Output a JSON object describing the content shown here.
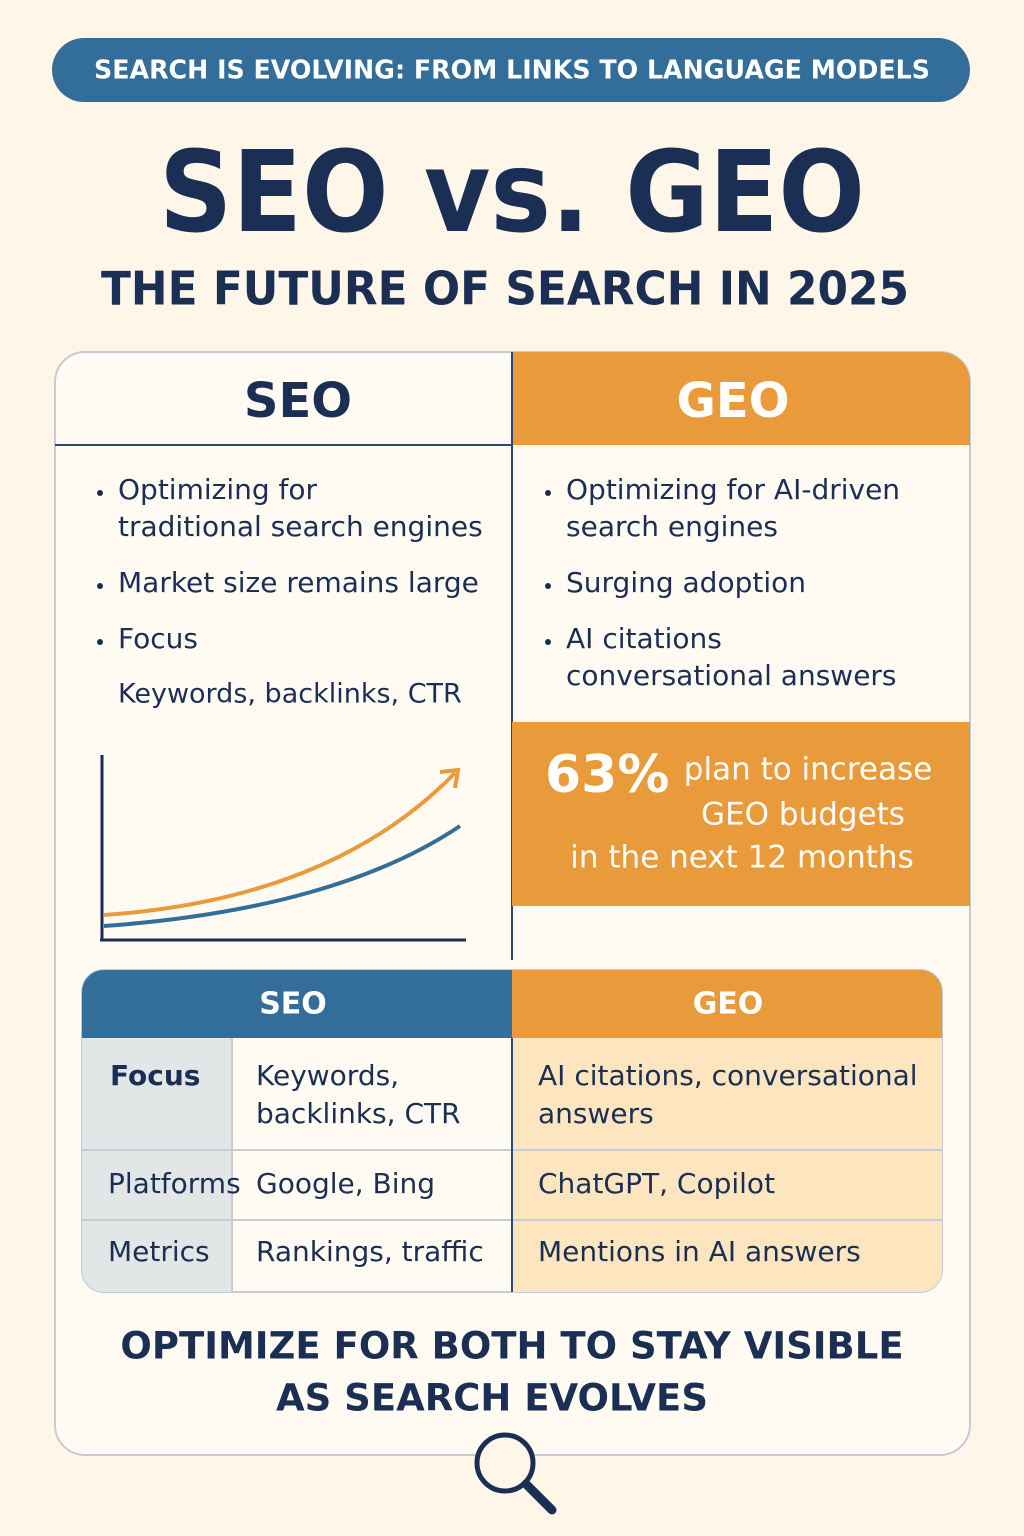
{
  "banner": "SEARCH IS EVOLVING: FROM LINKS TO LANGUAGE MODELS",
  "title": "SEO vs. GEO",
  "subtitle": "THE FUTURE OF SEARCH IN 2025",
  "seo": {
    "heading": "SEO",
    "bullets": [
      [
        "Optimizing for",
        "traditional search engines"
      ],
      [
        "Market size remains large"
      ],
      [
        "Focus"
      ]
    ],
    "detail": "Keywords, backlinks, CTR"
  },
  "geo": {
    "heading": "GEO",
    "bullets": [
      [
        "Optimizing for AI-driven",
        "search engines"
      ],
      [
        "Surging adoption"
      ],
      [
        "AI citations",
        "conversational answers"
      ]
    ]
  },
  "stat": {
    "figure": "63%",
    "lines": [
      "plan to increase",
      "GEO budgets",
      "in the next 12 months"
    ]
  },
  "table": {
    "headers": [
      "SEO",
      "GEO"
    ],
    "rows": [
      [
        [
          "Focus"
        ],
        [
          "Keywords,",
          "backlinks, CTR"
        ],
        [
          "AI citations, conversational",
          "answers"
        ]
      ],
      [
        [
          "Platforms"
        ],
        [
          "Google, Bing"
        ],
        [
          "ChatGPT, Copilot"
        ]
      ],
      [
        [
          "Metrics"
        ],
        [
          "Rankings, traffic"
        ],
        [
          "Mentions in AI answers"
        ]
      ]
    ]
  },
  "footer": [
    "OPTIMIZE FOR BOTH TO STAY VISIBLE",
    "AS SEARCH EVOLVES"
  ]
}
